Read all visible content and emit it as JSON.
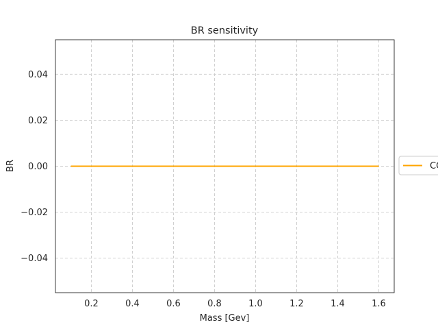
{
  "chart_data": {
    "type": "line",
    "title": "BR sensitivity",
    "xlabel": "Mass [Gev]",
    "ylabel": "BR",
    "xlim": [
      0.025,
      1.675
    ],
    "ylim": [
      -0.055,
      0.055
    ],
    "xticks": [
      0.2,
      0.4,
      0.6,
      0.8,
      1.0,
      1.2,
      1.4,
      1.6
    ],
    "xtick_labels": [
      "0.2",
      "0.4",
      "0.6",
      "0.8",
      "1.0",
      "1.2",
      "1.4",
      "1.6"
    ],
    "yticks": [
      -0.04,
      -0.02,
      0.0,
      0.02,
      0.04
    ],
    "ytick_labels": [
      "−0.04",
      "−0.02",
      "0.00",
      "0.02",
      "0.04"
    ],
    "grid": true,
    "legend_placement": "outside-right",
    "series": [
      {
        "name": "CO",
        "color": "#ffa500",
        "x": [
          0.1,
          1.6
        ],
        "y": [
          0.0,
          0.0
        ]
      }
    ]
  }
}
